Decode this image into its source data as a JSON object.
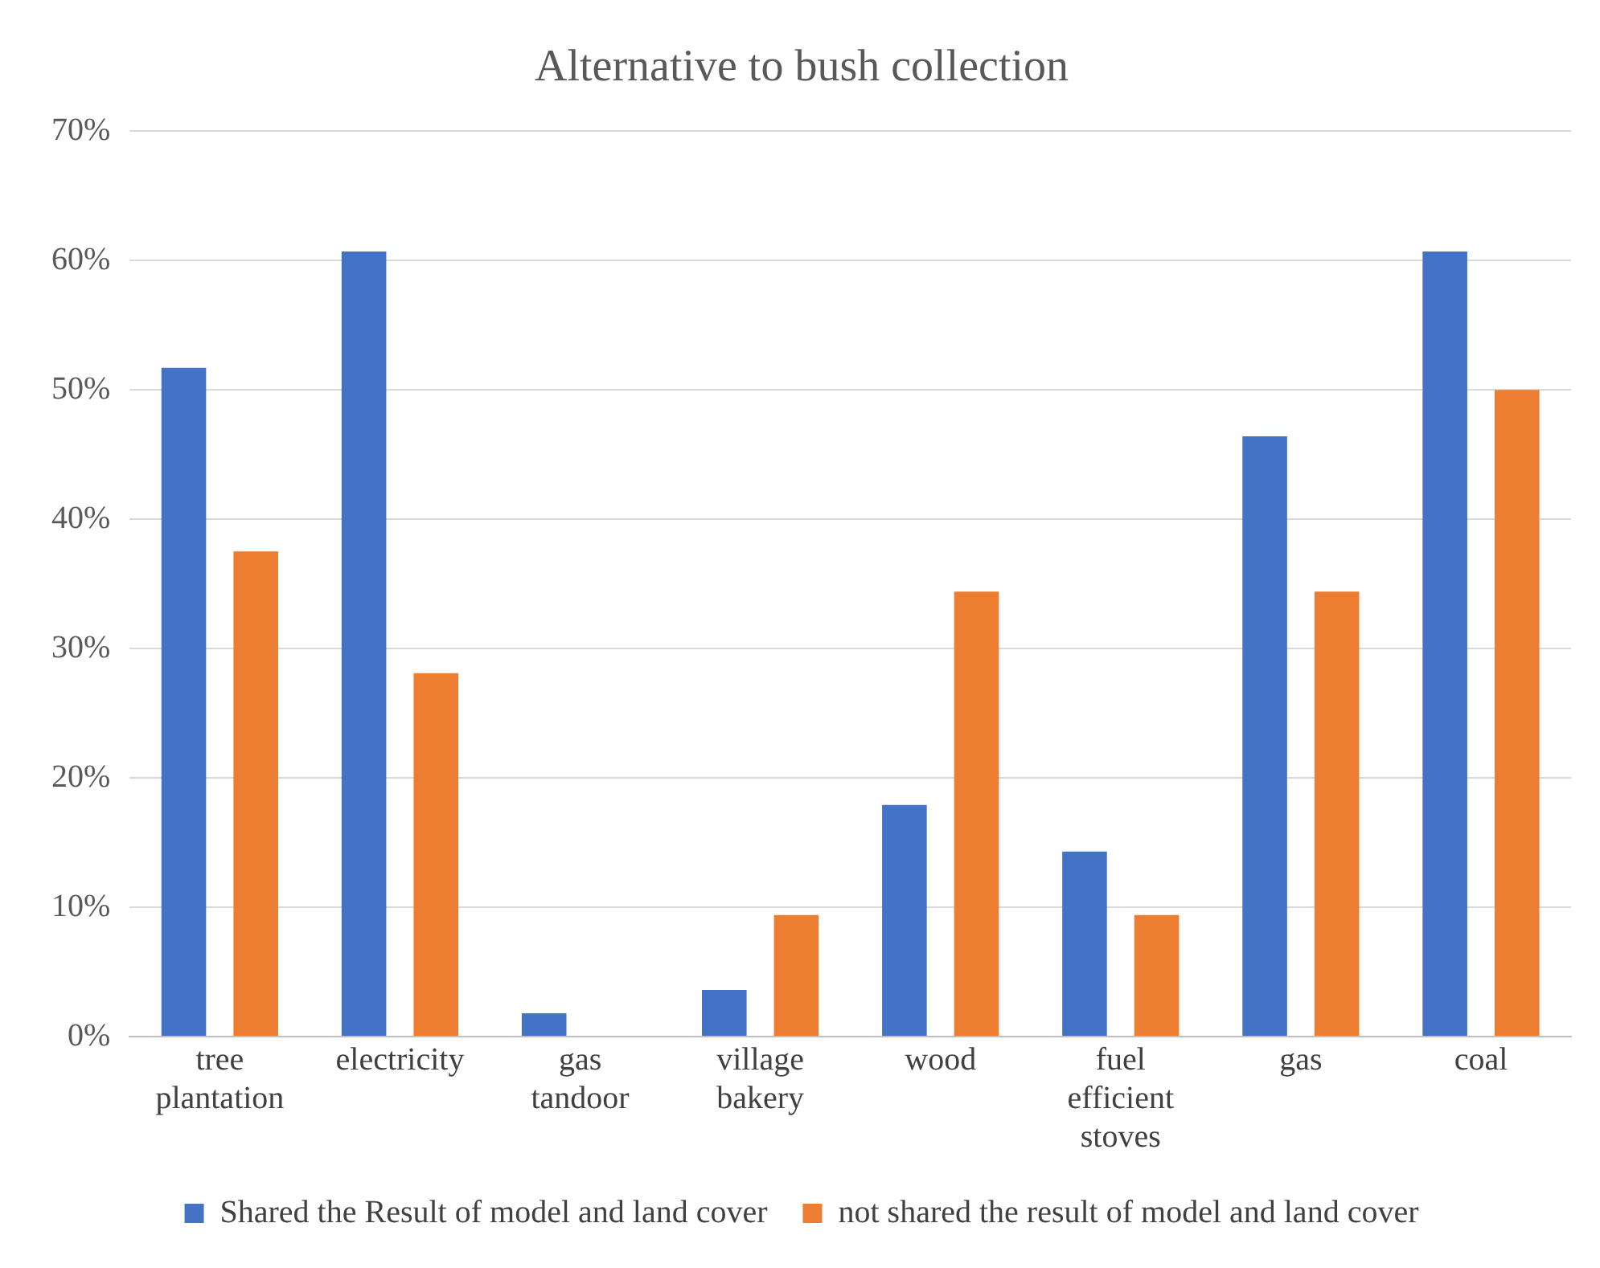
{
  "chart_data": {
    "type": "bar",
    "title": "Alternative to bush collection",
    "categories": [
      "tree plantation",
      "electricity",
      "gas tandoor",
      "village bakery",
      "wood",
      "fuel efficient stoves",
      "gas",
      "coal"
    ],
    "series": [
      {
        "name": "Shared the Result of model and land cover",
        "color": "#4472c4",
        "values": [
          51.7,
          60.7,
          1.8,
          3.6,
          17.9,
          14.3,
          46.4,
          60.7
        ]
      },
      {
        "name": "not shared the result of model and land cover",
        "color": "#ed7d31",
        "values": [
          37.5,
          28.1,
          0,
          9.4,
          34.4,
          9.4,
          34.4,
          50
        ]
      }
    ],
    "ylim": [
      0,
      70
    ],
    "yticks": [
      {
        "value": 0,
        "label": "0%"
      },
      {
        "value": 10,
        "label": "10%"
      },
      {
        "value": 20,
        "label": "20%"
      },
      {
        "value": 30,
        "label": "30%"
      },
      {
        "value": 40,
        "label": "40%"
      },
      {
        "value": 50,
        "label": "50%"
      },
      {
        "value": 60,
        "label": "60%"
      },
      {
        "value": 70,
        "label": "70%"
      }
    ],
    "grid": "y",
    "legend": "bottom"
  }
}
